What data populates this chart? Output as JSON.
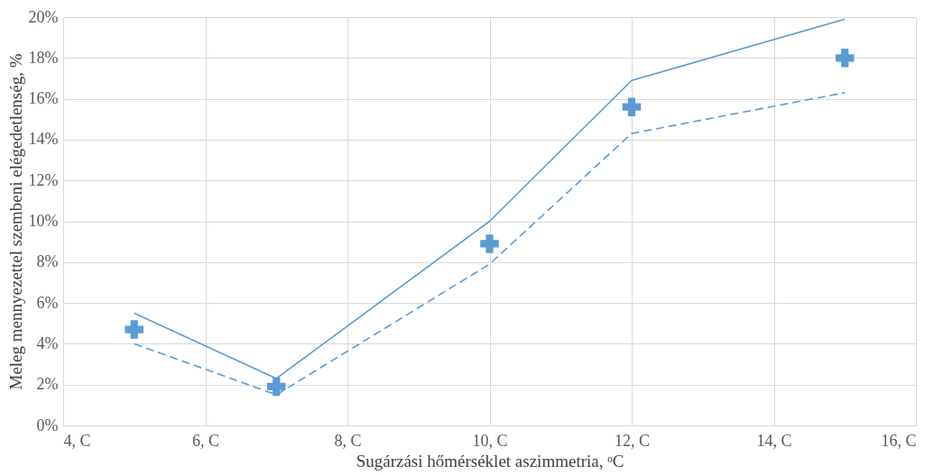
{
  "chart_data": {
    "type": "line",
    "xlabel": "Sugárzási hőmérséklet aszimmetria, ᵒC",
    "ylabel": "Meleg mennyezettel szembeni elégedetlenség, %",
    "x": [
      5,
      7,
      10,
      12,
      15
    ],
    "series": [
      {
        "color": "#5b9bd5",
        "line_style": "solid",
        "marker": "none",
        "values": [
          5.5,
          2.3,
          10.0,
          16.9,
          19.9
        ]
      },
      {
        "color": "#5b9bd5",
        "line_style": "dashed",
        "marker": "none",
        "values": [
          4.0,
          1.5,
          7.9,
          14.3,
          16.3
        ]
      },
      {
        "type": "scatter",
        "color": "#5b9bd5",
        "marker": "cross",
        "values": [
          4.7,
          1.9,
          8.9,
          15.6,
          18.0
        ]
      }
    ],
    "xlim": [
      4,
      16
    ],
    "xticks": [
      {
        "value": 4,
        "label": "4, C"
      },
      {
        "value": 6,
        "label": "6, C"
      },
      {
        "value": 8,
        "label": "8, C"
      },
      {
        "value": 10,
        "label": "10, C"
      },
      {
        "value": 12,
        "label": "12, C"
      },
      {
        "value": 14,
        "label": "14, C"
      },
      {
        "value": 16,
        "label": "16, C"
      }
    ],
    "ylim": [
      0,
      20
    ],
    "yticks": [
      {
        "value": 0,
        "label": "0%"
      },
      {
        "value": 2,
        "label": "2%"
      },
      {
        "value": 4,
        "label": "4%"
      },
      {
        "value": 6,
        "label": "6%"
      },
      {
        "value": 8,
        "label": "8%"
      },
      {
        "value": 10,
        "label": "10%"
      },
      {
        "value": 12,
        "label": "12%"
      },
      {
        "value": 14,
        "label": "14%"
      },
      {
        "value": 16,
        "label": "16%"
      },
      {
        "value": 18,
        "label": "18%"
      },
      {
        "value": 20,
        "label": "20%"
      }
    ],
    "grid": true,
    "legend": false
  }
}
